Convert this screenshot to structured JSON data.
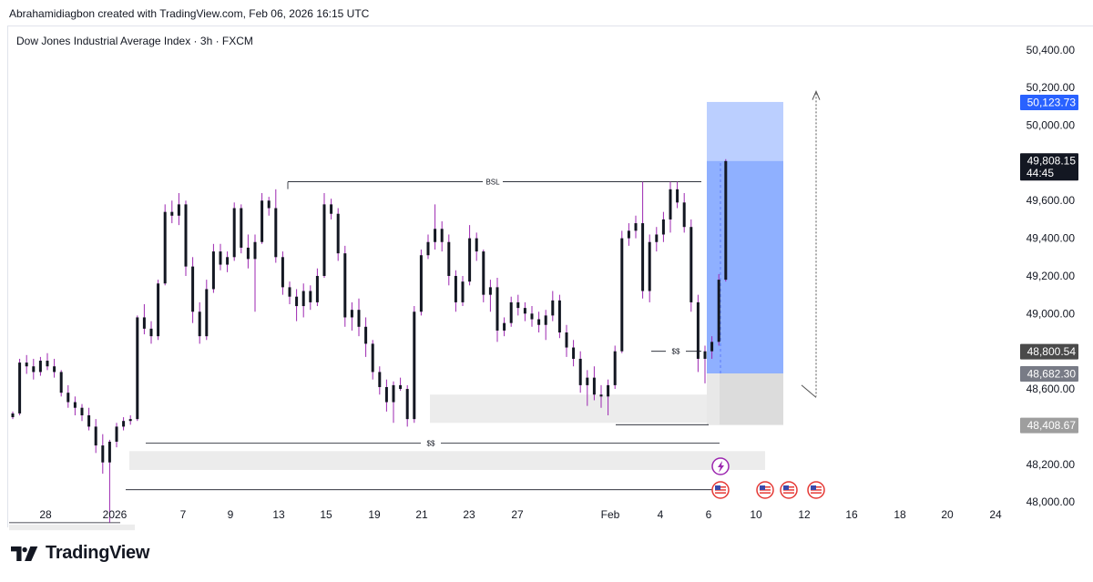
{
  "header": {
    "credit": "Abrahamidiagbon created with TradingView.com, Feb 06, 2026 16:15 UTC"
  },
  "symbol": {
    "title": "Dow Jones Industrial Average Index · 3h · FXCM"
  },
  "footer": {
    "brand": "TradingView"
  },
  "chart_data": {
    "type": "candlestick",
    "y_axis": {
      "ticks": [
        50400,
        50200,
        50000,
        49800,
        49600,
        49400,
        49200,
        49000,
        48800,
        48600,
        48400,
        48200,
        48000
      ],
      "ylim": [
        47870,
        50520
      ]
    },
    "x_axis": {
      "tick_labels": [
        "28",
        "2026",
        "7",
        "9",
        "13",
        "15",
        "19",
        "21",
        "23",
        "27",
        "Feb",
        "4",
        "6",
        "10",
        "12",
        "16",
        "18",
        "20",
        "24"
      ]
    },
    "price_badges": [
      {
        "value": "50,123.73",
        "price": 50123.73,
        "color": "#2962ff"
      },
      {
        "value": "49,808.15",
        "price": 49808.15,
        "sub": "44:45",
        "color": "#131722"
      },
      {
        "value": "48,800.54",
        "price": 48800.54,
        "color": "#4a4a4a"
      },
      {
        "value": "48,682.30",
        "price": 48682.3,
        "color": "#787b86"
      },
      {
        "value": "48,408.67",
        "price": 48408.67,
        "color": "#9e9e9e"
      }
    ],
    "annotations": [
      {
        "label": "BSL",
        "price": 49700
      },
      {
        "label": "$$",
        "price": 48800
      },
      {
        "label": "$$",
        "price": 48312
      }
    ],
    "position_tool": {
      "target": 50123.73,
      "entry": 48682.3,
      "stop": 48408.67
    },
    "series": [
      {
        "name": "",
        "color": "#131722",
        "wick_color": "#9c27b0",
        "ohlc": [
          [
            48450,
            48480,
            48440,
            48470
          ],
          [
            48470,
            48760,
            48460,
            48740
          ],
          [
            48740,
            48780,
            48680,
            48720
          ],
          [
            48720,
            48760,
            48650,
            48690
          ],
          [
            48690,
            48770,
            48670,
            48750
          ],
          [
            48750,
            48790,
            48700,
            48720
          ],
          [
            48720,
            48760,
            48660,
            48690
          ],
          [
            48690,
            48700,
            48560,
            48580
          ],
          [
            48580,
            48620,
            48500,
            48530
          ],
          [
            48530,
            48560,
            48460,
            48500
          ],
          [
            48500,
            48520,
            48430,
            48460
          ],
          [
            48460,
            48500,
            48380,
            48400
          ],
          [
            48400,
            48440,
            48260,
            48300
          ],
          [
            48300,
            48360,
            48150,
            48210
          ],
          [
            48210,
            48330,
            47890,
            48320
          ],
          [
            48320,
            48420,
            48290,
            48400
          ],
          [
            48400,
            48450,
            48380,
            48430
          ],
          [
            48430,
            48460,
            48410,
            48440
          ],
          [
            48440,
            48990,
            48430,
            48980
          ],
          [
            48980,
            49050,
            48890,
            48920
          ],
          [
            48920,
            48960,
            48840,
            48880
          ],
          [
            48880,
            49180,
            48860,
            49160
          ],
          [
            49160,
            49580,
            49150,
            49540
          ],
          [
            49540,
            49600,
            49480,
            49520
          ],
          [
            49520,
            49640,
            49470,
            49580
          ],
          [
            49580,
            49600,
            49200,
            49250
          ],
          [
            49250,
            49300,
            48950,
            49010
          ],
          [
            49010,
            49060,
            48840,
            48880
          ],
          [
            48880,
            49180,
            48860,
            49130
          ],
          [
            49130,
            49370,
            49110,
            49330
          ],
          [
            49330,
            49370,
            49230,
            49260
          ],
          [
            49260,
            49330,
            49220,
            49300
          ],
          [
            49300,
            49590,
            49280,
            49560
          ],
          [
            49560,
            49580,
            49320,
            49350
          ],
          [
            49350,
            49420,
            49240,
            49290
          ],
          [
            49290,
            49420,
            49010,
            49380
          ],
          [
            49380,
            49640,
            49370,
            49600
          ],
          [
            49600,
            49620,
            49520,
            49560
          ],
          [
            49560,
            49660,
            49270,
            49300
          ],
          [
            49300,
            49330,
            49100,
            49140
          ],
          [
            49140,
            49170,
            49050,
            49090
          ],
          [
            49090,
            49130,
            48960,
            49040
          ],
          [
            49040,
            49160,
            48980,
            49120
          ],
          [
            49120,
            49150,
            49020,
            49060
          ],
          [
            49060,
            49240,
            49040,
            49200
          ],
          [
            49200,
            49640,
            49190,
            49580
          ],
          [
            49580,
            49610,
            49500,
            49530
          ],
          [
            49530,
            49560,
            49280,
            49320
          ],
          [
            49320,
            49360,
            48930,
            48980
          ],
          [
            48980,
            49060,
            48910,
            49020
          ],
          [
            49020,
            49080,
            48880,
            48930
          ],
          [
            48930,
            48980,
            48770,
            48840
          ],
          [
            48840,
            48860,
            48650,
            48690
          ],
          [
            48690,
            48720,
            48570,
            48610
          ],
          [
            48610,
            48650,
            48480,
            48530
          ],
          [
            48530,
            48640,
            48420,
            48620
          ],
          [
            48620,
            48660,
            48590,
            48600
          ],
          [
            48600,
            48620,
            48400,
            48440
          ],
          [
            48440,
            49040,
            48420,
            49010
          ],
          [
            49010,
            49340,
            48990,
            49310
          ],
          [
            49310,
            49420,
            49290,
            49380
          ],
          [
            49380,
            49580,
            49340,
            49450
          ],
          [
            49450,
            49490,
            49330,
            49380
          ],
          [
            49380,
            49420,
            49150,
            49200
          ],
          [
            49200,
            49230,
            49010,
            49060
          ],
          [
            49060,
            49200,
            49040,
            49170
          ],
          [
            49170,
            49470,
            49150,
            49400
          ],
          [
            49400,
            49430,
            49280,
            49330
          ],
          [
            49330,
            49340,
            49060,
            49100
          ],
          [
            49100,
            49180,
            49010,
            49140
          ],
          [
            49140,
            49190,
            48850,
            48910
          ],
          [
            48910,
            48980,
            48880,
            48950
          ],
          [
            48950,
            49090,
            48930,
            49060
          ],
          [
            49060,
            49100,
            48990,
            49030
          ],
          [
            49030,
            49060,
            48960,
            49000
          ],
          [
            49000,
            49040,
            48930,
            48970
          ],
          [
            48970,
            49010,
            48900,
            48940
          ],
          [
            48940,
            49020,
            48860,
            48990
          ],
          [
            48990,
            49120,
            48960,
            49070
          ],
          [
            49070,
            49100,
            48870,
            48900
          ],
          [
            48900,
            48940,
            48770,
            48820
          ],
          [
            48820,
            48860,
            48720,
            48760
          ],
          [
            48760,
            48800,
            48580,
            48620
          ],
          [
            48620,
            48700,
            48510,
            48660
          ],
          [
            48660,
            48720,
            48540,
            48570
          ],
          [
            48570,
            48620,
            48500,
            48560
          ],
          [
            48560,
            48650,
            48460,
            48620
          ],
          [
            48620,
            48830,
            48600,
            48800
          ],
          [
            48800,
            49440,
            48790,
            49400
          ],
          [
            49400,
            49480,
            49360,
            49440
          ],
          [
            49440,
            49520,
            49400,
            49480
          ],
          [
            49480,
            49700,
            49080,
            49120
          ],
          [
            49120,
            49420,
            49060,
            49380
          ],
          [
            49380,
            49460,
            49330,
            49420
          ],
          [
            49420,
            49540,
            49380,
            49500
          ],
          [
            49500,
            49700,
            49430,
            49660
          ],
          [
            49660,
            49700,
            49560,
            49590
          ],
          [
            49590,
            49640,
            49430,
            49460
          ],
          [
            49460,
            49500,
            49010,
            49060
          ],
          [
            49060,
            49100,
            48690,
            48760
          ],
          [
            48760,
            48830,
            48630,
            48800
          ],
          [
            48800,
            48880,
            48760,
            48850
          ],
          [
            48850,
            49210,
            48830,
            49180
          ],
          [
            49180,
            49820,
            49170,
            49810
          ]
        ]
      }
    ]
  }
}
